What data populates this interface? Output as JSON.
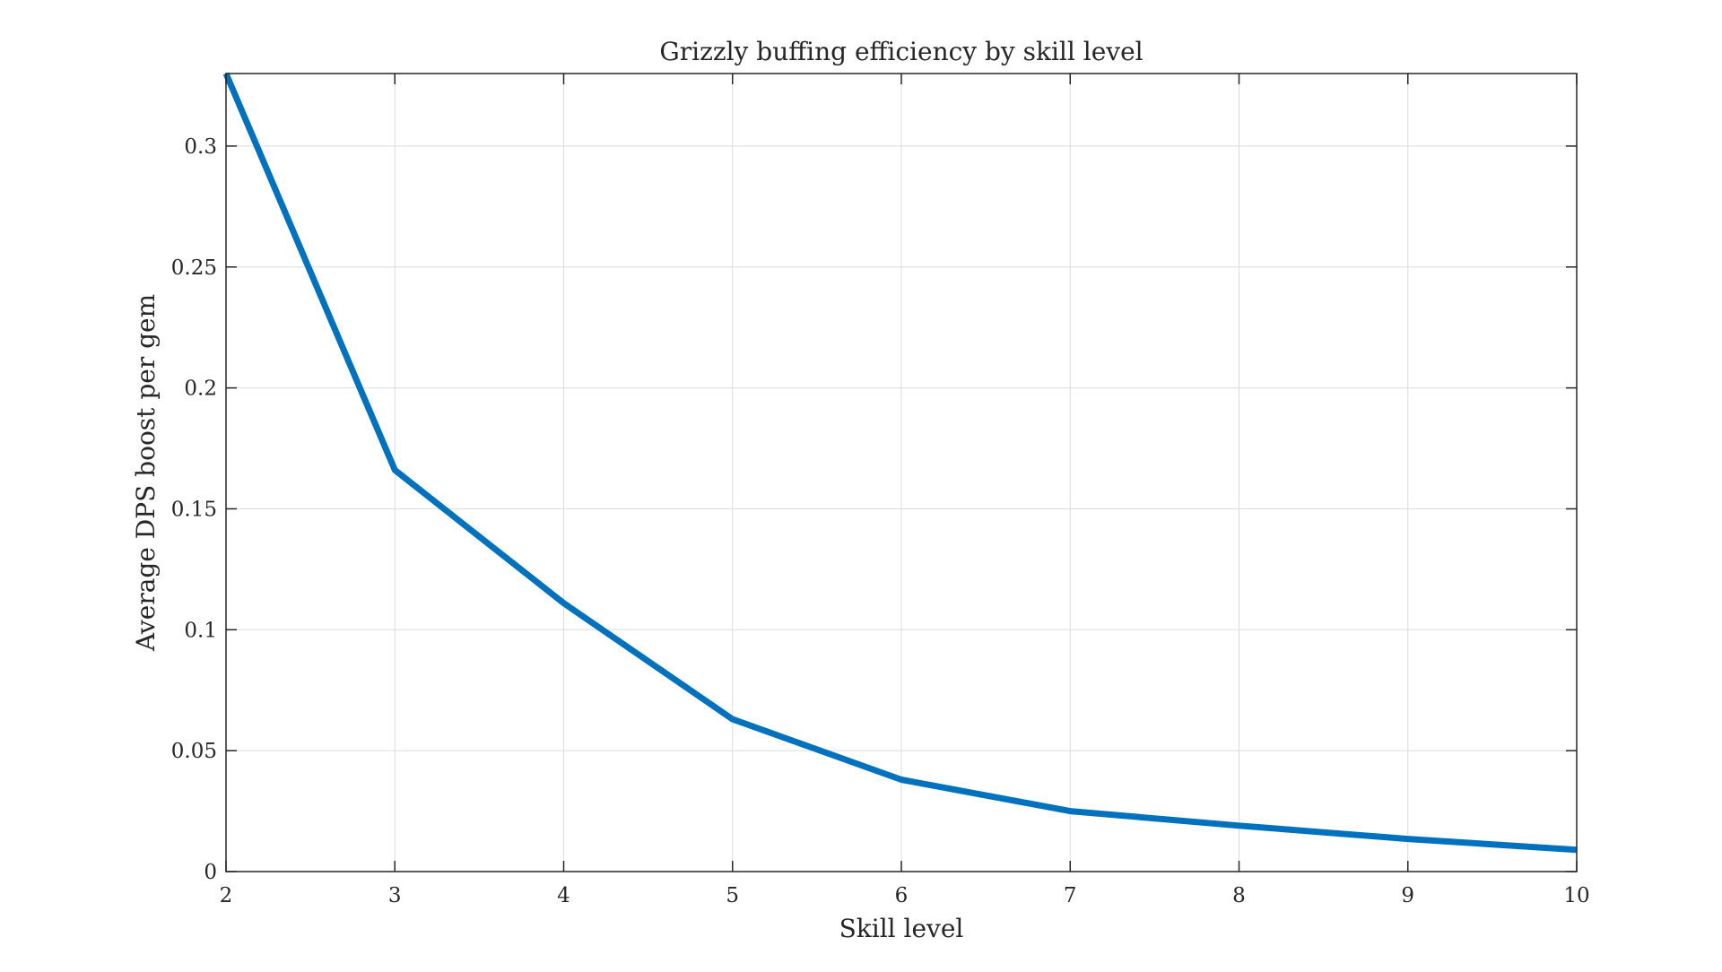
{
  "chart_data": {
    "type": "line",
    "title": "Grizzly buffing efficiency by skill level",
    "xlabel": "Skill level",
    "ylabel": "Average DPS boost per gem",
    "x": [
      2,
      3,
      4,
      5,
      6,
      7,
      8,
      9,
      10
    ],
    "series": [
      {
        "values": [
          0.33,
          0.166,
          0.111,
          0.063,
          0.038,
          0.025,
          0.019,
          0.0135,
          0.009
        ]
      }
    ],
    "xlim": [
      2,
      10
    ],
    "ylim": [
      0,
      0.33
    ],
    "xticks": [
      2,
      3,
      4,
      5,
      6,
      7,
      8,
      9,
      10
    ],
    "xtick_labels": [
      "2",
      "3",
      "4",
      "5",
      "6",
      "7",
      "8",
      "9",
      "10"
    ],
    "yticks": [
      0,
      0.05,
      0.1,
      0.15,
      0.2,
      0.25,
      0.3
    ],
    "ytick_labels": [
      "0",
      "0.05",
      "0.1",
      "0.15",
      "0.2",
      "0.25",
      "0.3"
    ],
    "grid": true,
    "line_color": "#0072BD",
    "axis_color": "#262626",
    "grid_color": "#DCDCDC"
  }
}
